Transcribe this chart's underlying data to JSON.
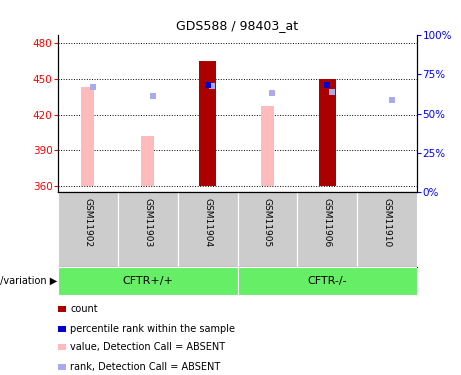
{
  "title": "GDS588 / 98403_at",
  "samples": [
    "GSM11902",
    "GSM11903",
    "GSM11904",
    "GSM11905",
    "GSM11906",
    "GSM11910"
  ],
  "group_labels": [
    "CFTR+/+",
    "CFTR-/-"
  ],
  "group_color": "#66ee66",
  "ylim_left": [
    355,
    487
  ],
  "yticks_left": [
    360,
    390,
    420,
    450,
    480
  ],
  "ylim_right": [
    0,
    100
  ],
  "yticks_right": [
    0,
    25,
    50,
    75,
    100
  ],
  "yright_labels": [
    "0%",
    "25%",
    "50%",
    "75%",
    "100%"
  ],
  "bar_bottom": 360,
  "count_values": [
    360,
    360,
    465,
    360,
    450,
    362
  ],
  "count_color": "#aa0000",
  "absent_value_heights": [
    443,
    402,
    443,
    427,
    440,
    360
  ],
  "absent_value_color": "#ffbbbb",
  "rank_absent_values": [
    443,
    436,
    444,
    438,
    439,
    432
  ],
  "rank_absent_color": "#aaaaee",
  "percentile_values": [
    0,
    0,
    445,
    0,
    445,
    0
  ],
  "percentile_color": "#0000cc",
  "sample_bg_color": "#cccccc",
  "legend_items": [
    [
      "#aa0000",
      "count"
    ],
    [
      "#0000cc",
      "percentile rank within the sample"
    ],
    [
      "#ffbbbb",
      "value, Detection Call = ABSENT"
    ],
    [
      "#aaaaee",
      "rank, Detection Call = ABSENT"
    ]
  ]
}
